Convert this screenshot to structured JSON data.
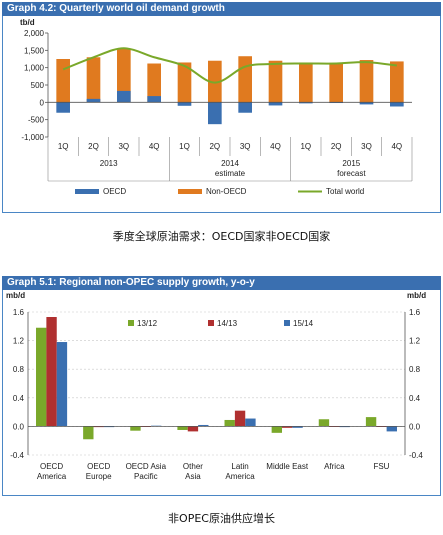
{
  "chart_data": [
    {
      "type": "bar",
      "title": "Graph 4.2: Quarterly world oil demand growth",
      "ylabel": "tb/d",
      "ylim": [
        -1000,
        2000
      ],
      "yticks": [
        "2,000",
        "1,500",
        "1,000",
        "500",
        "0",
        "-500",
        "-1,000"
      ],
      "categories": [
        "1Q",
        "2Q",
        "3Q",
        "4Q",
        "1Q",
        "2Q",
        "3Q",
        "4Q",
        "1Q",
        "2Q",
        "3Q",
        "4Q"
      ],
      "year_groups": [
        {
          "year": "2013",
          "sub": ""
        },
        {
          "year": "2014",
          "sub": "estimate"
        },
        {
          "year": "2015",
          "sub": "forecast"
        }
      ],
      "series": [
        {
          "name": "OECD",
          "values": [
            -300,
            100,
            330,
            180,
            -100,
            -630,
            -300,
            -90,
            -30,
            -20,
            -60,
            -120
          ],
          "color": "#3a6fb0"
        },
        {
          "name": "Non-OECD",
          "values": [
            1250,
            1300,
            1550,
            1120,
            1150,
            1200,
            1330,
            1200,
            1150,
            1140,
            1220,
            1180
          ],
          "color": "#e07a1f"
        },
        {
          "name": "Total world",
          "values": [
            950,
            1300,
            1560,
            1300,
            1050,
            570,
            1030,
            1110,
            1120,
            1120,
            1160,
            1060
          ],
          "color": "#7aa82a"
        }
      ]
    },
    {
      "type": "bar",
      "title": "Graph 5.1: Regional non-OPEC supply growth, y-o-y",
      "ylabel": "mb/d",
      "ylabel_right": "mb/d",
      "ylim": [
        -0.4,
        1.6
      ],
      "yticks": [
        "1.6",
        "1.2",
        "0.8",
        "0.4",
        "0.0",
        "-0.4"
      ],
      "categories": [
        [
          "OECD",
          "America"
        ],
        [
          "OECD",
          "Europe"
        ],
        [
          "OECD Asia",
          "Pacific"
        ],
        [
          "Other",
          "Asia"
        ],
        [
          "Latin",
          "America"
        ],
        [
          "Middle East"
        ],
        [
          "Africa"
        ],
        [
          "FSU"
        ]
      ],
      "series": [
        {
          "name": "13/12",
          "values": [
            1.38,
            -0.18,
            -0.06,
            -0.05,
            0.09,
            -0.09,
            0.1,
            0.13
          ],
          "color": "#7aa82a"
        },
        {
          "name": "14/13",
          "values": [
            1.53,
            -0.01,
            0.0,
            -0.07,
            0.22,
            -0.02,
            0.0,
            0.0
          ],
          "color": "#b03030"
        },
        {
          "name": "15/14",
          "values": [
            1.18,
            -0.01,
            0.01,
            0.02,
            0.11,
            -0.02,
            -0.01,
            -0.07
          ],
          "color": "#3a6fb0"
        }
      ]
    }
  ],
  "captions": [
    "季度全球原油需求：OECD国家非OECD国家",
    "非OPEC原油供应增长"
  ],
  "colors": {
    "frame": "#4a86c5",
    "title_bg": "#3a6fb0",
    "grid": "#c8c8c8",
    "axis": "#555555"
  }
}
